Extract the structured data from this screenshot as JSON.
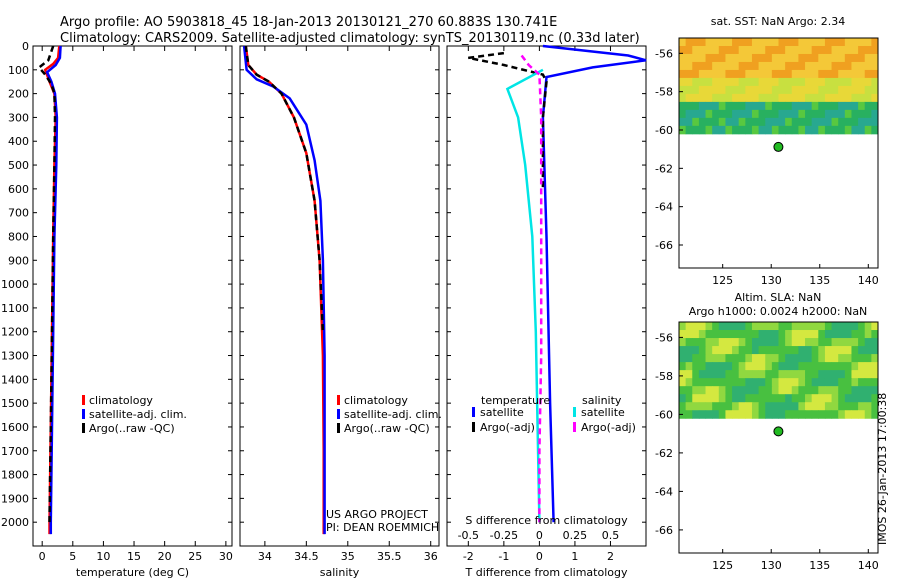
{
  "header": {
    "line1": "Argo profile: AO 5903818_45 18-Jan-2013 20130121_270 60.883S 130.741E",
    "line2": "Climatology: CARS2009. Satellite-adjusted climatology: synTS_20130119.nc (0.33d later)"
  },
  "stamp": "IMOS 26-Jan-2013 17:00:38",
  "colors": {
    "climatology": "#ff0000",
    "satellite": "#0000ff",
    "argo": "#000000",
    "salinity_satellite": "#00e5e5",
    "salinity_argo": "#ff00ff",
    "argo_marker": "#22bb22"
  },
  "chart_data": [
    {
      "type": "line",
      "id": "temperature",
      "xlabel": "temperature (deg C)",
      "ylabel": "",
      "xlim": [
        -1.5,
        31
      ],
      "ylim": [
        2100,
        0
      ],
      "xticks": [
        0,
        5,
        10,
        15,
        20,
        25,
        30
      ],
      "yticks": [
        0,
        100,
        200,
        300,
        400,
        500,
        600,
        700,
        800,
        900,
        1000,
        1100,
        1200,
        1300,
        1400,
        1500,
        1600,
        1700,
        1800,
        1900,
        2000
      ],
      "legend": [
        "climatology",
        "satellite-adj. clim.",
        "Argo(..raw -QC)"
      ],
      "series": [
        {
          "name": "climatology",
          "color": "#ff0000",
          "dash": "",
          "points": [
            [
              2.8,
              0
            ],
            [
              2.6,
              50
            ],
            [
              1.8,
              75
            ],
            [
              0.5,
              100
            ],
            [
              1.2,
              150
            ],
            [
              2.0,
              200
            ],
            [
              2.2,
              300
            ],
            [
              2.0,
              500
            ],
            [
              1.8,
              800
            ],
            [
              1.6,
              1200
            ],
            [
              1.4,
              1600
            ],
            [
              1.2,
              2000
            ],
            [
              1.2,
              2050
            ]
          ]
        },
        {
          "name": "satellite-adj. clim.",
          "color": "#0000ff",
          "dash": "",
          "points": [
            [
              3.0,
              0
            ],
            [
              2.9,
              50
            ],
            [
              2.2,
              80
            ],
            [
              0.8,
              110
            ],
            [
              1.5,
              150
            ],
            [
              2.1,
              200
            ],
            [
              2.4,
              300
            ],
            [
              2.3,
              500
            ],
            [
              2.0,
              800
            ],
            [
              1.8,
              1200
            ],
            [
              1.6,
              1600
            ],
            [
              1.4,
              2000
            ],
            [
              1.4,
              2050
            ]
          ]
        },
        {
          "name": "Argo(..raw -QC)",
          "color": "#000000",
          "dash": "6,4",
          "points": [
            [
              1.8,
              0
            ],
            [
              1.0,
              60
            ],
            [
              -0.5,
              90
            ],
            [
              0.5,
              120
            ],
            [
              1.5,
              160
            ],
            [
              2.0,
              200
            ],
            [
              2.1,
              300
            ],
            [
              2.0,
              500
            ],
            [
              1.8,
              800
            ],
            [
              1.6,
              1200
            ],
            [
              1.4,
              1600
            ],
            [
              1.2,
              2000
            ]
          ]
        }
      ]
    },
    {
      "type": "line",
      "id": "salinity",
      "xlabel": "salinity",
      "ylabel": "",
      "xlim": [
        33.7,
        36.1
      ],
      "ylim": [
        2100,
        0
      ],
      "xticks": [
        34,
        34.5,
        35,
        35.5,
        36
      ],
      "legend": [
        "climatology",
        "satellite-adj. clim.",
        "Argo(..raw -QC)"
      ],
      "annotations": [
        "US ARGO PROJECT",
        "PI: DEAN ROEMMICH"
      ],
      "series": [
        {
          "name": "climatology",
          "color": "#ff0000",
          "dash": "",
          "points": [
            [
              33.77,
              0
            ],
            [
              33.8,
              80
            ],
            [
              33.9,
              120
            ],
            [
              34.05,
              150
            ],
            [
              34.2,
              200
            ],
            [
              34.35,
              300
            ],
            [
              34.5,
              450
            ],
            [
              34.6,
              650
            ],
            [
              34.66,
              900
            ],
            [
              34.7,
              1300
            ],
            [
              34.71,
              1700
            ],
            [
              34.71,
              2050
            ]
          ]
        },
        {
          "name": "satellite-adj. clim.",
          "color": "#0000ff",
          "dash": "",
          "points": [
            [
              33.75,
              0
            ],
            [
              33.78,
              100
            ],
            [
              33.9,
              140
            ],
            [
              34.1,
              170
            ],
            [
              34.3,
              220
            ],
            [
              34.5,
              330
            ],
            [
              34.6,
              480
            ],
            [
              34.67,
              650
            ],
            [
              34.7,
              900
            ],
            [
              34.72,
              1300
            ],
            [
              34.72,
              1700
            ],
            [
              34.72,
              2050
            ]
          ]
        },
        {
          "name": "Argo(..raw -QC)",
          "color": "#000000",
          "dash": "6,4",
          "points": [
            [
              33.77,
              0
            ],
            [
              33.8,
              80
            ],
            [
              33.9,
              120
            ],
            [
              34.05,
              150
            ],
            [
              34.2,
              200
            ],
            [
              34.35,
              300
            ],
            [
              34.5,
              450
            ],
            [
              34.6,
              650
            ],
            [
              34.66,
              900
            ],
            [
              34.7,
              1200
            ]
          ]
        }
      ]
    },
    {
      "type": "line",
      "id": "difference",
      "xlabel": "T difference from climatology",
      "xlabel_top": "S difference from climatology",
      "xlim": [
        -2.6,
        3.0
      ],
      "ylim": [
        2100,
        0
      ],
      "xticks": [
        -2,
        -1,
        0,
        1,
        2
      ],
      "xticks_top_labels": [
        "-0.5",
        "-0.25",
        "0",
        "0.25",
        "0.5"
      ],
      "xticks_top_positions": [
        -2,
        -1,
        0,
        1,
        2
      ],
      "legend_headings": [
        "temperature",
        "salinity"
      ],
      "legend": [
        "satellite",
        "Argo(-adj)",
        "satellite",
        "Argo(-adj)"
      ],
      "series": [
        {
          "name": "temperature satellite",
          "color": "#0000ff",
          "dash": "",
          "points": [
            [
              0.1,
              0
            ],
            [
              2.5,
              40
            ],
            [
              3.0,
              60
            ],
            [
              1.5,
              90
            ],
            [
              0.2,
              130
            ],
            [
              0.1,
              300
            ],
            [
              0.2,
              800
            ],
            [
              0.3,
              1500
            ],
            [
              0.4,
              2000
            ]
          ]
        },
        {
          "name": "temperature Argo(-adj)",
          "color": "#000000",
          "dash": "6,4",
          "points": [
            [
              -1.0,
              30
            ],
            [
              -2.0,
              50
            ],
            [
              -1.0,
              80
            ],
            [
              0.1,
              120
            ],
            [
              0.2,
              150
            ],
            [
              0.1,
              300
            ],
            [
              0.1,
              600
            ]
          ]
        },
        {
          "name": "salinity satellite",
          "color": "#00e5e5",
          "dash": "",
          "points": [
            [
              0.1,
              100
            ],
            [
              -0.9,
              180
            ],
            [
              -0.6,
              300
            ],
            [
              -0.4,
              500
            ],
            [
              -0.2,
              800
            ],
            [
              -0.1,
              1200
            ],
            [
              -0.05,
              1600
            ],
            [
              0.0,
              2000
            ]
          ]
        },
        {
          "name": "salinity Argo(-adj)",
          "color": "#ff00ff",
          "dash": "6,4",
          "points": [
            [
              -0.5,
              40
            ],
            [
              -0.3,
              80
            ],
            [
              0.0,
              120
            ],
            [
              0.05,
              300
            ],
            [
              0.05,
              800
            ],
            [
              0.05,
              1300
            ],
            [
              0.0,
              1700
            ],
            [
              0.0,
              2000
            ]
          ]
        }
      ]
    },
    {
      "type": "heatmap",
      "id": "sst_map",
      "title": "sat. SST: NaN Argo: 2.34",
      "xlim": [
        120.5,
        141
      ],
      "ylim": [
        -67.2,
        -55.2
      ],
      "xticks": [
        125,
        130,
        135,
        140
      ],
      "yticks": [
        -56,
        -58,
        -60,
        -62,
        -64,
        -66
      ],
      "data_lat_min": -60.2,
      "marker": {
        "lon": 130.741,
        "lat": -60.883
      }
    },
    {
      "type": "heatmap",
      "id": "sla_map",
      "title": "Altim. SLA: NaN",
      "subtitle": "Argo h1000: 0.0024 h2000: NaN",
      "xlim": [
        120.5,
        141
      ],
      "ylim": [
        -67.2,
        -55.2
      ],
      "xticks": [
        125,
        130,
        135,
        140
      ],
      "yticks": [
        -56,
        -58,
        -60,
        -62,
        -64,
        -66
      ],
      "data_lat_min": -60.2,
      "marker": {
        "lon": 130.741,
        "lat": -60.883
      }
    }
  ]
}
